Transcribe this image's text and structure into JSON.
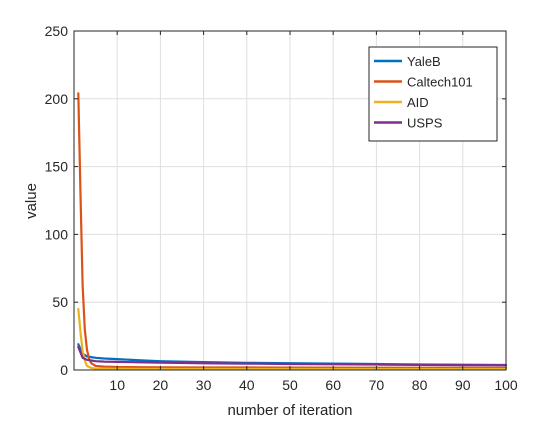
{
  "chart_data": {
    "type": "line",
    "title": "",
    "xlabel": "number of iteration",
    "ylabel": "value",
    "xlim": [
      0,
      100
    ],
    "ylim": [
      0,
      250
    ],
    "xticks": [
      10,
      20,
      30,
      40,
      50,
      60,
      70,
      80,
      90,
      100
    ],
    "yticks": [
      0,
      50,
      100,
      150,
      200,
      250
    ],
    "grid": true,
    "legend_position": "top-right",
    "series": [
      {
        "name": "YaleB",
        "color": "#0072BD",
        "x": [
          1,
          2,
          3,
          4,
          5,
          7,
          10,
          15,
          20,
          30,
          40,
          50,
          60,
          70,
          80,
          90,
          100
        ],
        "y": [
          19,
          12,
          10,
          9.5,
          9,
          8.5,
          8,
          7.2,
          6.5,
          5.8,
          5.3,
          5,
          4.7,
          4.4,
          4.1,
          3.9,
          3.7
        ]
      },
      {
        "name": "Caltech101",
        "color": "#D95319",
        "x": [
          1,
          1.5,
          2,
          2.5,
          3,
          3.5,
          4,
          5,
          7,
          10,
          20,
          30,
          50,
          70,
          100
        ],
        "y": [
          204,
          130,
          62,
          30,
          15,
          8,
          5,
          3,
          2.5,
          2.2,
          2,
          1.9,
          1.8,
          1.7,
          1.6
        ]
      },
      {
        "name": "AID",
        "color": "#EDB120",
        "x": [
          1,
          1.5,
          2,
          2.5,
          3,
          4,
          5,
          10,
          20,
          50,
          100
        ],
        "y": [
          45,
          28,
          14,
          7,
          3,
          1.5,
          1,
          0.9,
          0.8,
          0.8,
          0.8
        ]
      },
      {
        "name": "USPS",
        "color": "#7E2F8E",
        "x": [
          1,
          2,
          3,
          4,
          5,
          7,
          10,
          15,
          20,
          30,
          40,
          50,
          60,
          70,
          80,
          90,
          100
        ],
        "y": [
          17,
          9,
          7.5,
          7,
          6.5,
          6.2,
          6,
          5.7,
          5.4,
          5,
          4.7,
          4.4,
          4.2,
          4,
          3.8,
          3.6,
          3.5
        ]
      }
    ]
  }
}
